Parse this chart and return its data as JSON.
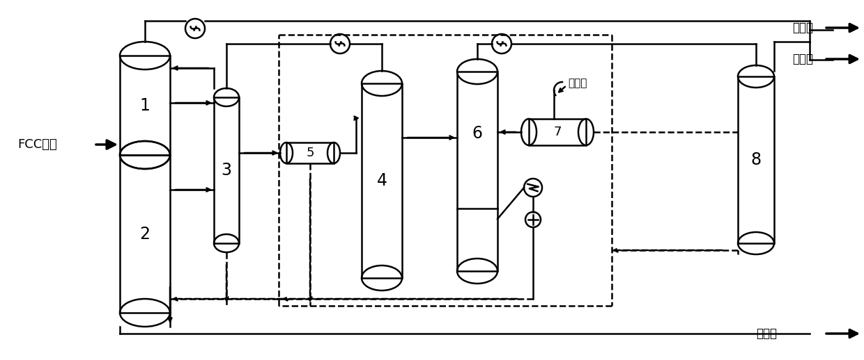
{
  "bg_color": "#ffffff",
  "lc": "#000000",
  "labels": {
    "fcc": "FCC汽油",
    "raffinate": "萃余油",
    "extract": "萃取油",
    "light_olefin": "轻烯烃",
    "vacuum": "抽真空",
    "n1": "1",
    "n2": "2",
    "n3": "3",
    "n4": "4",
    "n5": "5",
    "n6": "6",
    "n7": "7",
    "n8": "8"
  }
}
